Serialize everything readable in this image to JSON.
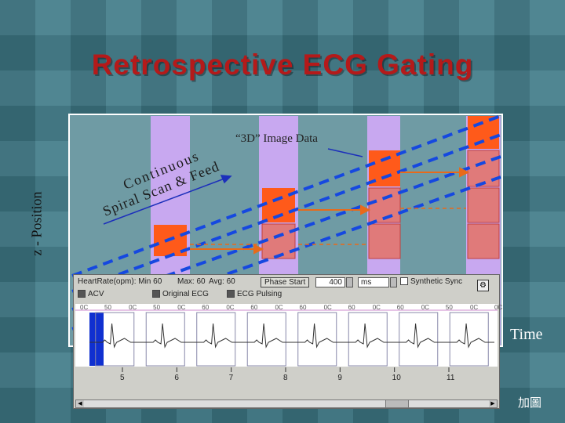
{
  "slide": {
    "title": "Retrospective ECG Gating",
    "y_axis_label": "z - Position",
    "x_axis_label": "Time",
    "footer_label": "加圖",
    "annotation_3d": "“3D” Image Data",
    "annotation_spiral_lines": [
      "Continuous",
      "Spiral Scan & Feed"
    ]
  },
  "colors": {
    "title": "#b41a1a",
    "plot_bg": "#6f9ba4",
    "stripe": "#c8a8f0",
    "orange": "#ff5a1a",
    "pink": "#e07a7a",
    "dashed_blue": "#1548e0",
    "ecg_bg": "#ffffff"
  },
  "ecg_window": {
    "stats": [
      "HeartRate(opm): Min 60",
      "Max: 60",
      "Avg: 60"
    ],
    "phase_start_label": "Phase Start",
    "phase_value": "400",
    "unit": "ms",
    "synthetic_sync": "Synthetic Sync",
    "checkboxes": [
      {
        "label": "ACV",
        "checked": true
      },
      {
        "label": "Original ECG",
        "checked": true
      },
      {
        "label": "ECG Pulsing",
        "checked": true
      }
    ],
    "markers": [
      "0C",
      "50",
      "0C",
      "50",
      "0C",
      "60",
      "0C",
      "60",
      "0C",
      "60",
      "0C",
      "60",
      "0C",
      "60",
      "0C",
      "50",
      "0C",
      "0C"
    ],
    "time_ticks": [
      "5",
      "6",
      "7",
      "8",
      "9",
      "10",
      "11"
    ]
  }
}
